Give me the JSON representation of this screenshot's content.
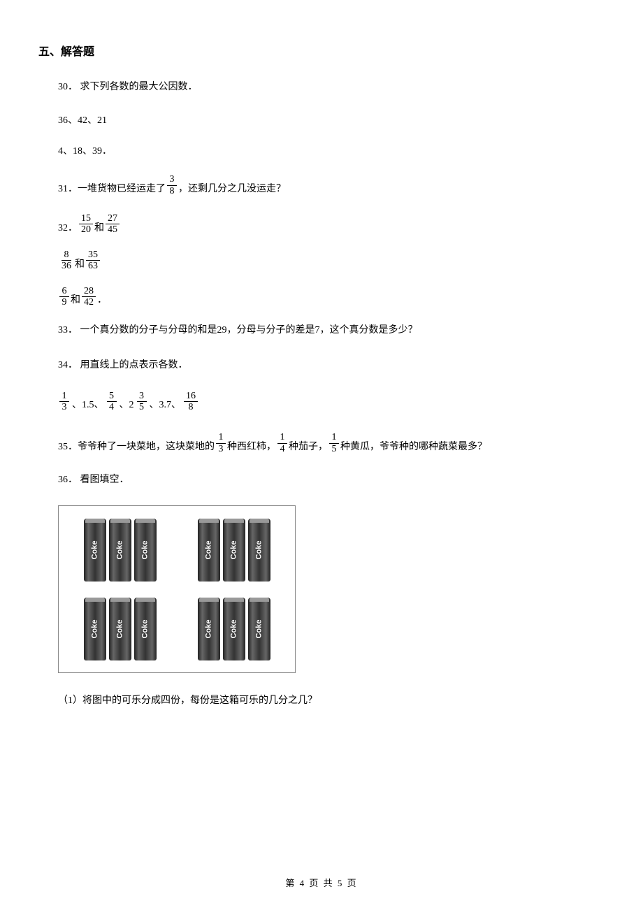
{
  "section_heading": "五、解答题",
  "q30": {
    "num": "30．",
    "text": "求下列各数的最大公因数．",
    "line1": "36、42、21",
    "line2": "4、18、39．"
  },
  "q31": {
    "num": "31．",
    "pre": "一堆货物已经运走了",
    "frac": {
      "n": "3",
      "d": "8"
    },
    "post": "，还剩几分之几没运走？"
  },
  "q32": {
    "num": "32．",
    "pair1": {
      "a": {
        "n": "15",
        "d": "20"
      },
      "mid": "和",
      "b": {
        "n": "27",
        "d": "45"
      }
    },
    "pair2": {
      "a": {
        "n": "8",
        "d": "36"
      },
      "mid": "和",
      "b": {
        "n": "35",
        "d": "63"
      }
    },
    "pair3": {
      "a": {
        "n": "6",
        "d": "9"
      },
      "mid": "和",
      "b": {
        "n": "28",
        "d": "42"
      },
      "tail": "．"
    }
  },
  "q33": {
    "num": "33．",
    "text": "一个真分数的分子与分母的和是29，分母与分子的差是7，这个真分数是多少？"
  },
  "q34": {
    "num": "34．",
    "text": "用直线上的点表示各数．",
    "items": [
      {
        "type": "frac",
        "n": "1",
        "d": "3"
      },
      {
        "type": "text",
        "v": "、1.5、"
      },
      {
        "type": "frac",
        "n": "5",
        "d": "4"
      },
      {
        "type": "text",
        "v": "、2"
      },
      {
        "type": "frac",
        "n": "3",
        "d": "5"
      },
      {
        "type": "text",
        "v": "、3.7、"
      },
      {
        "type": "frac",
        "n": "16",
        "d": "8"
      }
    ]
  },
  "q35": {
    "num": "35．",
    "t1": "爷爷种了一块菜地，这块菜地的",
    "f1": {
      "n": "1",
      "d": "3"
    },
    "t2": "种西红柿，",
    "f2": {
      "n": "1",
      "d": "4"
    },
    "t3": "种茄子，",
    "f3": {
      "n": "1",
      "d": "5"
    },
    "t4": "种黄瓜，爷爷种的哪种蔬菜最多？"
  },
  "q36": {
    "num": "36．",
    "text": "看图填空．",
    "can_label": "Coke",
    "sub1": "（1）将图中的可乐分成四份，每份是这箱可乐的几分之几？"
  },
  "footer": {
    "text": "第 4 页 共 5 页"
  }
}
